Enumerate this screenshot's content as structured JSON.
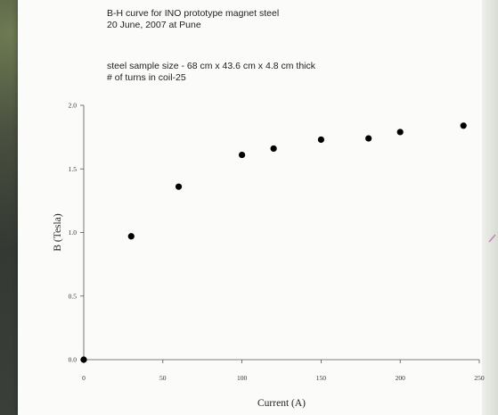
{
  "header": {
    "title_line1": "B-H curve for INO prototype magnet steel",
    "title_line2": "20 June, 2007 at Pune",
    "subtitle_line1": "steel sample size - 68 cm x 43.6 cm x 4.8 cm thick",
    "subtitle_line2": "# of turns in coil-25"
  },
  "chart_data": {
    "type": "scatter",
    "title": "B-H curve for INO prototype magnet steel",
    "subtitle": "20 June, 2007 at Pune",
    "annotations": [
      "steel sample size - 68 cm x 43.6 cm x 4.8 cm thick",
      "# of turns in coil-25"
    ],
    "xlabel": "Current (A)",
    "ylabel": "B (Tesla)",
    "xlim": [
      0,
      250
    ],
    "ylim": [
      0,
      2.0
    ],
    "x_ticks": [
      "0",
      "50",
      "100",
      "150",
      "200",
      "250"
    ],
    "y_ticks": [
      "0.0",
      "0.5",
      "1.0",
      "1.5",
      "2.0"
    ],
    "grid": false,
    "legend": "none",
    "marker_color": "#000000",
    "series": [
      {
        "x": [
          0,
          30,
          60,
          100,
          120,
          150,
          180,
          200,
          240
        ],
        "y": [
          0.0,
          0.97,
          1.36,
          1.61,
          1.66,
          1.73,
          1.74,
          1.79,
          1.84
        ]
      }
    ]
  }
}
